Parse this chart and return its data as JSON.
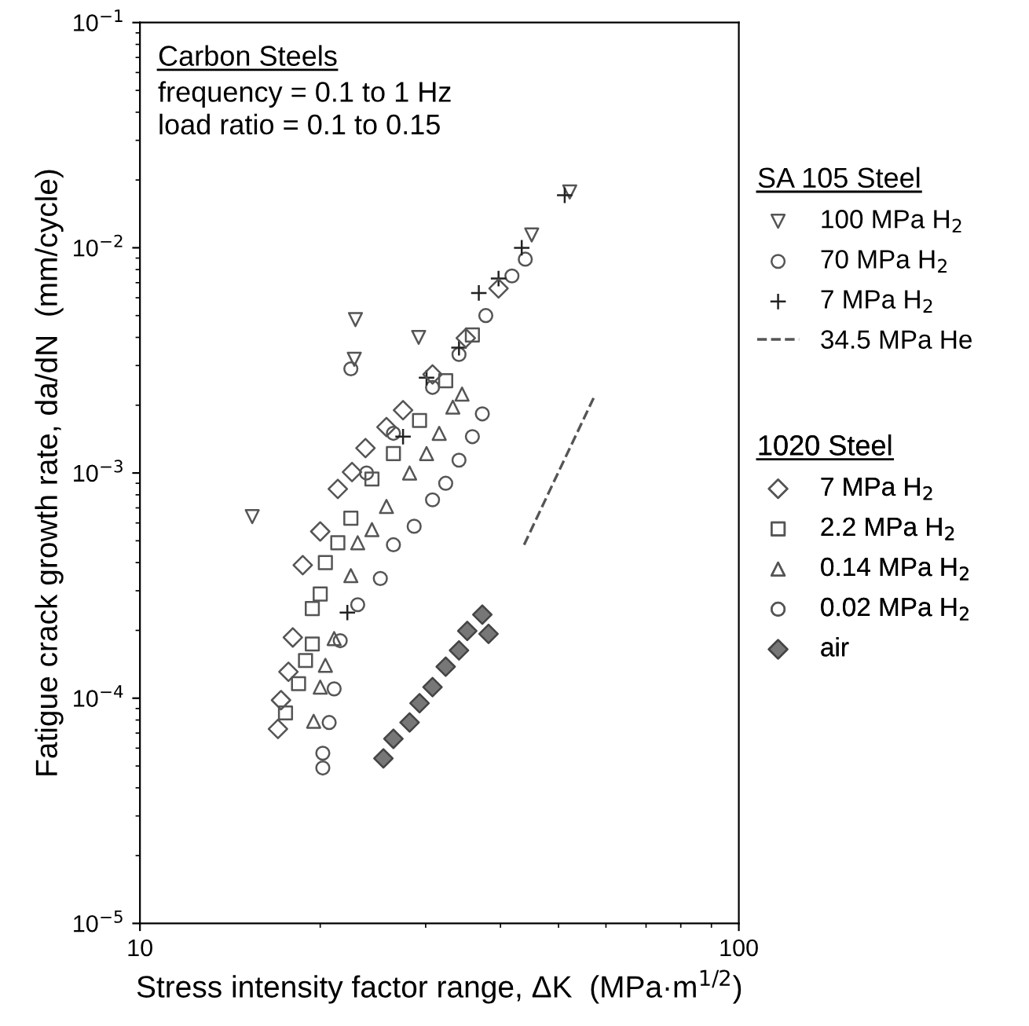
{
  "chart_data": {
    "type": "scatter",
    "xlabel": "Stress intensity factor range, ΔK  (MPa·m$^{1/2}$)",
    "ylabel": "Fatigue crack growth rate, da/dN  (mm/cycle)",
    "annotations": [
      "Carbon Steels",
      "frequency = 0.1 to 1 Hz",
      "load ratio = 0.1 to 0.15",
      "SA 105 Steel",
      "1020 Steel"
    ],
    "log": "xy",
    "xlim": [
      10,
      100
    ],
    "ylim": [
      1e-05,
      0.1
    ],
    "xticks": [
      10,
      100
    ],
    "yticks": [
      {
        "value": 1e-05,
        "label": "10$^{−5}$"
      },
      {
        "value": 0.0001,
        "label": "10$^{−4}$"
      },
      {
        "value": 0.001,
        "label": "10$^{−3}$"
      },
      {
        "value": 0.01,
        "label": "10$^{−2}$"
      },
      {
        "value": 0.1,
        "label": "10$^{−1}$"
      }
    ],
    "grid": false,
    "legend": "right",
    "series": [
      {
        "name": "100 MPa H$_{2}$",
        "color": "#555555",
        "marker": "triangle_down",
        "x": [
          15.4,
          22.9,
          22.8,
          29.2,
          45.1,
          52.2
        ],
        "values": [
          0.00064,
          0.0048,
          0.0032,
          0.004,
          0.0114,
          0.0177
        ]
      },
      {
        "name": "70 MPa H$_{2}$",
        "color": "#555555",
        "marker": "circle",
        "x": [
          22.5,
          23.9,
          26.5,
          30.8,
          34.1,
          37.8,
          41.8,
          44.0
        ],
        "values": [
          0.0029,
          0.001,
          0.0015,
          0.0024,
          0.00336,
          0.005,
          0.0075,
          0.0089
        ]
      },
      {
        "name": "7 MPa H$_{2}$",
        "color": "#222222",
        "marker": "cross",
        "x": [
          51.2,
          43.4,
          36.8,
          30.1,
          27.5,
          22.2,
          34.1,
          39.7
        ],
        "values": [
          0.0171,
          0.01,
          0.0063,
          0.00265,
          0.00145,
          0.00024,
          0.0036,
          0.0073
        ]
      },
      {
        "name": "34.5 MPa He",
        "type": "line",
        "color": "#555555",
        "marker": "none",
        "line_style": "dashed",
        "x": [
          43.8,
          49.9,
          57.3
        ],
        "values": [
          0.00048,
          0.001,
          0.00217
        ]
      },
      {
        "name": "7 MPa H$_{2}$",
        "color": "#555555",
        "marker": "diamond",
        "x": [
          17.0,
          17.2,
          17.7,
          18.0,
          18.7,
          20.0,
          21.4,
          22.6,
          23.8,
          25.8,
          27.5,
          30.8,
          35.0,
          39.7
        ],
        "values": [
          7.3e-05,
          9.8e-05,
          0.000131,
          0.000186,
          0.00039,
          0.00055,
          0.00085,
          0.00101,
          0.00129,
          0.0016,
          0.0019,
          0.00274,
          0.00397,
          0.0066
        ]
      },
      {
        "name": "2.2 MPa H$_{2}$",
        "color": "#555555",
        "marker": "square",
        "x": [
          17.5,
          18.4,
          18.9,
          19.4,
          19.4,
          20.0,
          20.4,
          21.4,
          22.5,
          24.4,
          26.5,
          29.3,
          32.4,
          35.9
        ],
        "values": [
          8.6e-05,
          0.000116,
          0.000147,
          0.000174,
          0.00025,
          0.00029,
          0.0004,
          0.00049,
          0.00063,
          0.00094,
          0.00122,
          0.00171,
          0.00257,
          0.0041
        ]
      },
      {
        "name": "0.14 MPa H$_{2}$",
        "color": "#555555",
        "marker": "triangle",
        "x": [
          19.5,
          20.0,
          20.4,
          21.1,
          22.5,
          23.1,
          24.4,
          25.8,
          28.2,
          30.1,
          31.6,
          33.3,
          34.5
        ],
        "values": [
          7.9e-05,
          0.000112,
          0.00014,
          0.000184,
          0.00035,
          0.00049,
          0.00056,
          0.00071,
          0.001,
          0.00122,
          0.0015,
          0.00196,
          0.00224
        ]
      },
      {
        "name": "0.02 MPa H$_{2}$",
        "color": "#555555",
        "marker": "circle",
        "x": [
          20.2,
          20.2,
          20.7,
          21.1,
          21.6,
          23.1,
          25.2,
          26.5,
          28.7,
          30.8,
          32.4,
          34.1,
          35.9,
          37.3
        ],
        "values": [
          4.9e-05,
          5.7e-05,
          7.8e-05,
          0.00011,
          0.00018,
          0.00026,
          0.00034,
          0.00048,
          0.00058,
          0.00076,
          0.0009,
          0.00114,
          0.00145,
          0.00183
        ]
      },
      {
        "name": "air",
        "color": "#777777",
        "marker": "diamond",
        "x": [
          25.5,
          26.5,
          28.2,
          29.3,
          30.8,
          32.4,
          34.1,
          35.2,
          37.3,
          38.2
        ],
        "values": [
          5.4e-05,
          6.6e-05,
          7.8e-05,
          9.5e-05,
          0.000112,
          0.000138,
          0.000163,
          0.000199,
          0.000235,
          0.000193
        ]
      }
    ]
  }
}
